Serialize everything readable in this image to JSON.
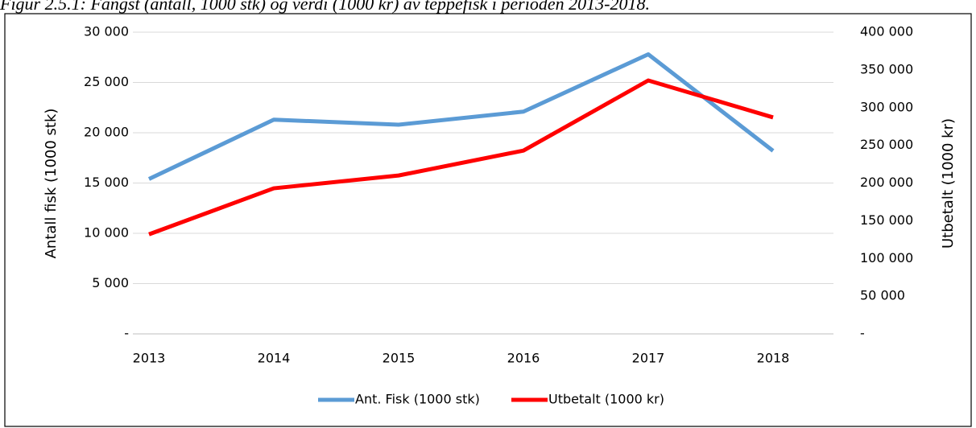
{
  "chart_data": {
    "type": "line",
    "title": "Figur 2.5.1: Fangst (antall, 1000 stk) og verdi (1000 kr) av teppefisk i perioden 2013-2018.",
    "y_label": "Antall fisk (1000 stk)",
    "y2_label": "Utbetalt (1000 kr)",
    "categories": [
      "2013",
      "2014",
      "2015",
      "2016",
      "2017",
      "2018"
    ],
    "series": [
      {
        "name": "Ant. Fisk (1000 stk)",
        "color": "#5b9bd5",
        "values": [
          15400,
          21300,
          20800,
          22100,
          27800,
          18200
        ]
      },
      {
        "name": "Utbetalt (1000 kr)",
        "color": "#ff0000",
        "axis": "y2",
        "values": [
          132000,
          193000,
          210000,
          243000,
          336000,
          287000
        ]
      }
    ],
    "ylim": [
      0,
      30000
    ],
    "yticks": [
      {
        "value": 0,
        "label": "-"
      },
      {
        "value": 5000,
        "label": "5 000"
      },
      {
        "value": 10000,
        "label": "10 000"
      },
      {
        "value": 15000,
        "label": "15 000"
      },
      {
        "value": 20000,
        "label": "20 000"
      },
      {
        "value": 25000,
        "label": "25 000"
      },
      {
        "value": 30000,
        "label": "30 000"
      }
    ],
    "y2lim": [
      0,
      400000
    ],
    "y2ticks": [
      {
        "value": 0,
        "label": "-"
      },
      {
        "value": 50000,
        "label": "50 000"
      },
      {
        "value": 100000,
        "label": "100 000"
      },
      {
        "value": 150000,
        "label": "150 000"
      },
      {
        "value": 200000,
        "label": "200 000"
      },
      {
        "value": 250000,
        "label": "250 000"
      },
      {
        "value": 300000,
        "label": "300 000"
      },
      {
        "value": 350000,
        "label": "350 000"
      },
      {
        "value": 400000,
        "label": "400 000"
      }
    ],
    "grid": true,
    "legend": "bottom"
  }
}
